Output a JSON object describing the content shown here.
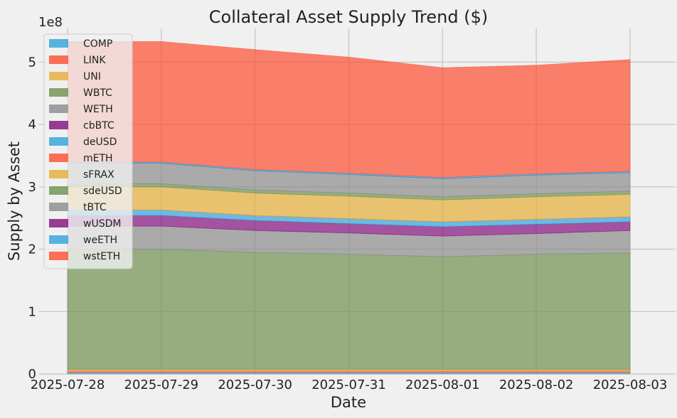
{
  "chart_data": {
    "type": "area",
    "title": "Collateral Asset Supply Trend ($)",
    "xlabel": "Date",
    "ylabel": "Supply by Asset",
    "y_scale_label": "1e8",
    "x": [
      "2025-07-28",
      "2025-07-29",
      "2025-07-30",
      "2025-07-31",
      "2025-08-01",
      "2025-08-02",
      "2025-08-03"
    ],
    "ylim": [
      0,
      550000000
    ],
    "yticks": [
      0,
      100000000,
      200000000,
      300000000,
      400000000,
      500000000
    ],
    "ytick_labels": [
      "0",
      "1",
      "2",
      "3",
      "4",
      "5"
    ],
    "stacked": true,
    "grid": true,
    "legend_position": "upper-left",
    "series": [
      {
        "name": "COMP",
        "color": "#30a2da",
        "values": [
          2000000,
          2000000,
          2000000,
          2000000,
          2000000,
          2000000,
          2000000
        ]
      },
      {
        "name": "LINK",
        "color": "#fc4f30",
        "values": [
          3000000,
          3000000,
          3000000,
          3000000,
          3000000,
          3000000,
          3000000
        ]
      },
      {
        "name": "UNI",
        "color": "#e5ae38",
        "values": [
          2000000,
          2000000,
          2000000,
          2000000,
          2000000,
          2000000,
          2000000
        ]
      },
      {
        "name": "WBTC",
        "color": "#6d904f",
        "values": [
          193000000,
          193000000,
          188000000,
          185000000,
          181000000,
          185000000,
          187000000
        ]
      },
      {
        "name": "WETH",
        "color": "#8b8b8b",
        "values": [
          37000000,
          37000000,
          35000000,
          34000000,
          33000000,
          33000000,
          36000000
        ]
      },
      {
        "name": "cbBTC",
        "color": "#810f7c",
        "values": [
          17000000,
          17000000,
          16000000,
          15000000,
          15000000,
          15000000,
          14000000
        ]
      },
      {
        "name": "deUSD",
        "color": "#30a2da",
        "values": [
          9000000,
          9000000,
          8000000,
          8000000,
          8000000,
          8000000,
          8000000
        ]
      },
      {
        "name": "mETH",
        "color": "#fc4f30",
        "values": [
          0,
          0,
          0,
          0,
          0,
          0,
          0
        ]
      },
      {
        "name": "sFRAX",
        "color": "#e5ae38",
        "values": [
          37000000,
          37000000,
          36000000,
          36000000,
          35000000,
          36000000,
          36000000
        ]
      },
      {
        "name": "sdeUSD",
        "color": "#6d904f",
        "values": [
          5000000,
          5000000,
          5000000,
          5000000,
          5000000,
          5000000,
          5000000
        ]
      },
      {
        "name": "tBTC",
        "color": "#8b8b8b",
        "values": [
          33000000,
          33000000,
          31000000,
          30000000,
          29000000,
          30000000,
          30000000
        ]
      },
      {
        "name": "wUSDM",
        "color": "#810f7c",
        "values": [
          0,
          0,
          0,
          0,
          0,
          0,
          0
        ]
      },
      {
        "name": "weETH",
        "color": "#30a2da",
        "values": [
          2000000,
          2000000,
          2000000,
          2000000,
          2000000,
          2000000,
          2000000
        ]
      },
      {
        "name": "wstETH",
        "color": "#fc4f30",
        "values": [
          193000000,
          193000000,
          192000000,
          186000000,
          176000000,
          174000000,
          179000000
        ]
      }
    ]
  }
}
